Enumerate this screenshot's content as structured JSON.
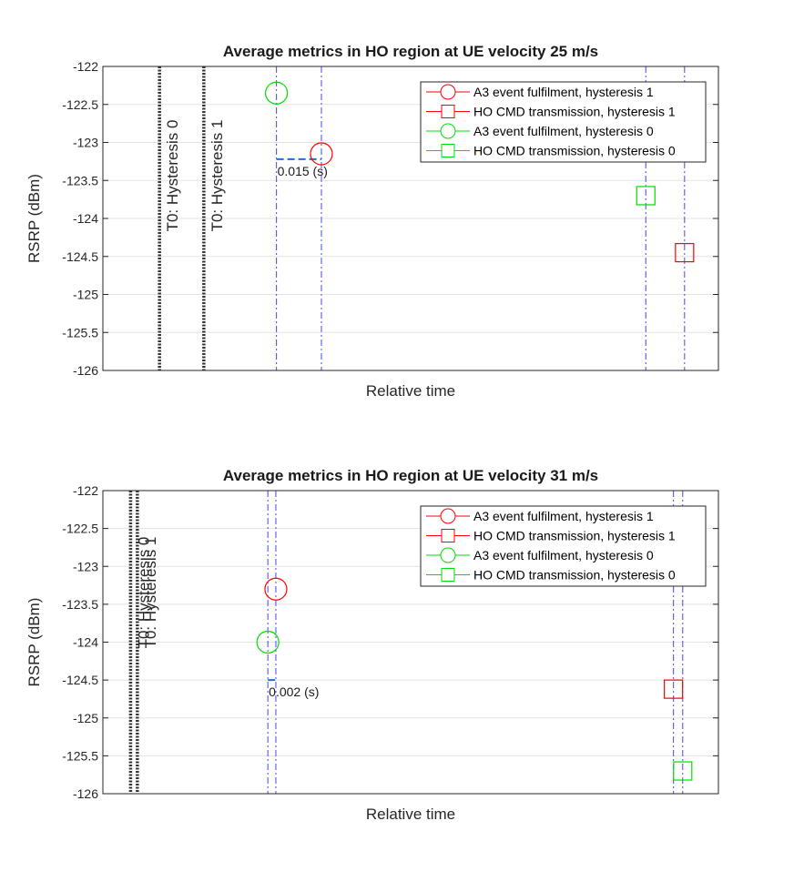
{
  "chart_data": [
    {
      "type": "scatter",
      "title": "Average metrics in HO region at UE velocity 25 m/s",
      "xlabel": "Relative time",
      "ylabel": "RSRP (dBm)",
      "ylim": [
        -126,
        -122
      ],
      "xlim": [
        0,
        100
      ],
      "yticks": [
        -122,
        -122.5,
        -123,
        -123.5,
        -124,
        -124.5,
        -125,
        -125.5,
        -126
      ],
      "ytick_labels": [
        "-122",
        "-122.5",
        "-123",
        "-123.5",
        "-124",
        "-124.5",
        "-125",
        "-125.5",
        "-126"
      ],
      "grid": true,
      "legend_position": "top-right",
      "series": [
        {
          "name": "A3 event fulfilment, hysteresis 1",
          "marker": "circle",
          "color": "#ff0000",
          "x": 35.5,
          "y": -123.15
        },
        {
          "name": "HO CMD transmission, hysteresis 1",
          "marker": "square",
          "color": "#ff0000",
          "x": 94.5,
          "y": -124.45
        },
        {
          "name": "A3 event fulfilment, hysteresis 0",
          "marker": "circle",
          "color": "#00dd00",
          "x": 28.2,
          "y": -122.35
        },
        {
          "name": "HO CMD transmission, hysteresis 0",
          "marker": "square",
          "color": "#00dd00",
          "x": 88.2,
          "y": -123.7
        }
      ],
      "t0_lines": [
        {
          "label": "T0: Hysteresis 0",
          "x": 9.2
        },
        {
          "label": "T0: Hysteresis 1",
          "x": 16.4
        }
      ],
      "blue_vlines": [
        28.2,
        35.5,
        88.2,
        94.5
      ],
      "annotation": {
        "text": "0.015 (s)",
        "x1": 28.2,
        "x2": 35.5,
        "y": -123.22
      },
      "legend_color_line": "#ff0000",
      "blue_color": "#4444ff"
    },
    {
      "type": "scatter",
      "title": "Average metrics in HO region at UE velocity 31 m/s",
      "xlabel": "Relative time",
      "ylabel": "RSRP (dBm)",
      "ylim": [
        -126,
        -122
      ],
      "xlim": [
        0,
        100
      ],
      "yticks": [
        -122,
        -122.5,
        -123,
        -123.5,
        -124,
        -124.5,
        -125,
        -125.5,
        -126
      ],
      "ytick_labels": [
        "-122",
        "-122.5",
        "-123",
        "-123.5",
        "-124",
        "-124.5",
        "-125",
        "-125.5",
        "-126"
      ],
      "grid": true,
      "legend_position": "top-right",
      "series": [
        {
          "name": "A3 event fulfilment, hysteresis 1",
          "marker": "circle",
          "color": "#ff0000",
          "x": 28.1,
          "y": -123.3
        },
        {
          "name": "HO CMD transmission, hysteresis 1",
          "marker": "square",
          "color": "#ff0000",
          "x": 92.7,
          "y": -124.62
        },
        {
          "name": "A3 event fulfilment, hysteresis 0",
          "marker": "circle",
          "color": "#00dd00",
          "x": 26.8,
          "y": -124.0
        },
        {
          "name": "HO CMD transmission, hysteresis 0",
          "marker": "square",
          "color": "#00dd00",
          "x": 94.2,
          "y": -125.7
        }
      ],
      "t0_lines": [
        {
          "label": "T0: Hysteresis 0",
          "x": 4.5
        },
        {
          "label": "T0: Hysteresis 1",
          "x": 5.6
        }
      ],
      "blue_vlines": [
        26.8,
        28.1,
        92.7,
        94.2
      ],
      "annotation": {
        "text": "0.002 (s)",
        "x1": 26.8,
        "x2": 28.1,
        "y": -124.5
      },
      "legend_color_line": "#ff0000",
      "blue_color": "#4444ff"
    }
  ]
}
